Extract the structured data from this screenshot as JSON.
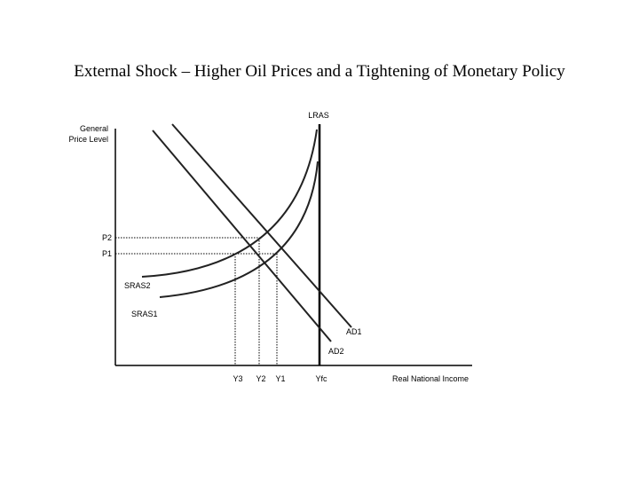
{
  "title": "External Shock – Higher Oil Prices and a Tightening of Monetary Policy",
  "y_axis_label": [
    "General",
    "Price Level"
  ],
  "x_axis_label": "Real National Income",
  "curves": {
    "lras": "LRAS",
    "ad1": "AD1",
    "ad2": "AD2",
    "sras1": "SRAS1",
    "sras2": "SRAS2"
  },
  "price_levels": {
    "p1": "P1",
    "p2": "P2"
  },
  "output_levels": {
    "y1": "Y1",
    "y2": "Y2",
    "y3": "Y3",
    "yfc": "Yfc"
  }
}
